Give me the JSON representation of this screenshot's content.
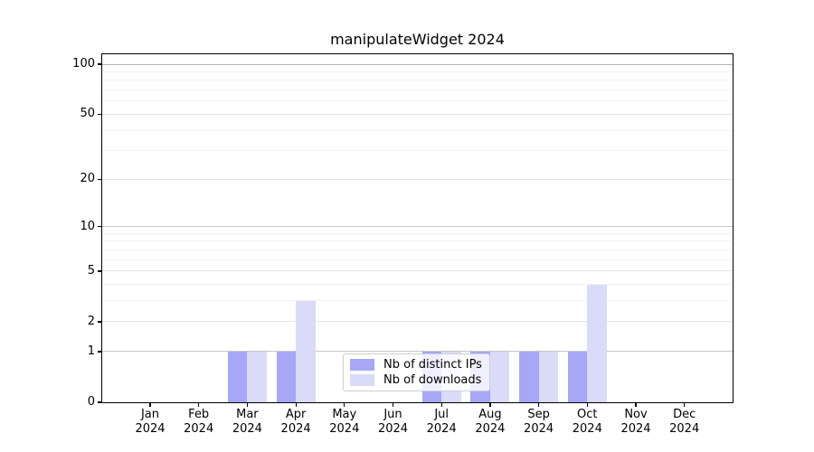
{
  "chart_data": {
    "type": "bar",
    "title": "manipulateWidget 2024",
    "categories": [
      "Jan 2024",
      "Feb 2024",
      "Mar 2024",
      "Apr 2024",
      "May 2024",
      "Jun 2024",
      "Jul 2024",
      "Aug 2024",
      "Sep 2024",
      "Oct 2024",
      "Nov 2024",
      "Dec 2024"
    ],
    "series": [
      {
        "name": "Nb of distinct IPs",
        "color": "#a7a7f6",
        "values": [
          0,
          0,
          1,
          1,
          0,
          0,
          1,
          1,
          1,
          1,
          0,
          0
        ]
      },
      {
        "name": "Nb of downloads",
        "color": "#dadaf9",
        "values": [
          0,
          0,
          1,
          3,
          0,
          0,
          1,
          1,
          1,
          4,
          0,
          0
        ]
      }
    ],
    "xlabel": "",
    "ylabel": "",
    "yscale": "log1p",
    "ylim": [
      0,
      114.7
    ],
    "y_major_ticks": [
      0,
      1,
      2,
      5,
      10,
      20,
      50,
      100
    ],
    "y_minor_gridlines": [
      3,
      4,
      6,
      7,
      8,
      9,
      30,
      40,
      60,
      70,
      80,
      90
    ],
    "grid": true,
    "legend_position": "lower-center-inside",
    "colors": {
      "background": "#ffffff",
      "axis": "#000000",
      "grid_power10": "#c6c6c6",
      "grid_100": "#b3b3b3",
      "grid_labeled_minor": "#e3e3e3",
      "grid_minor": "#f1f1f1"
    }
  }
}
